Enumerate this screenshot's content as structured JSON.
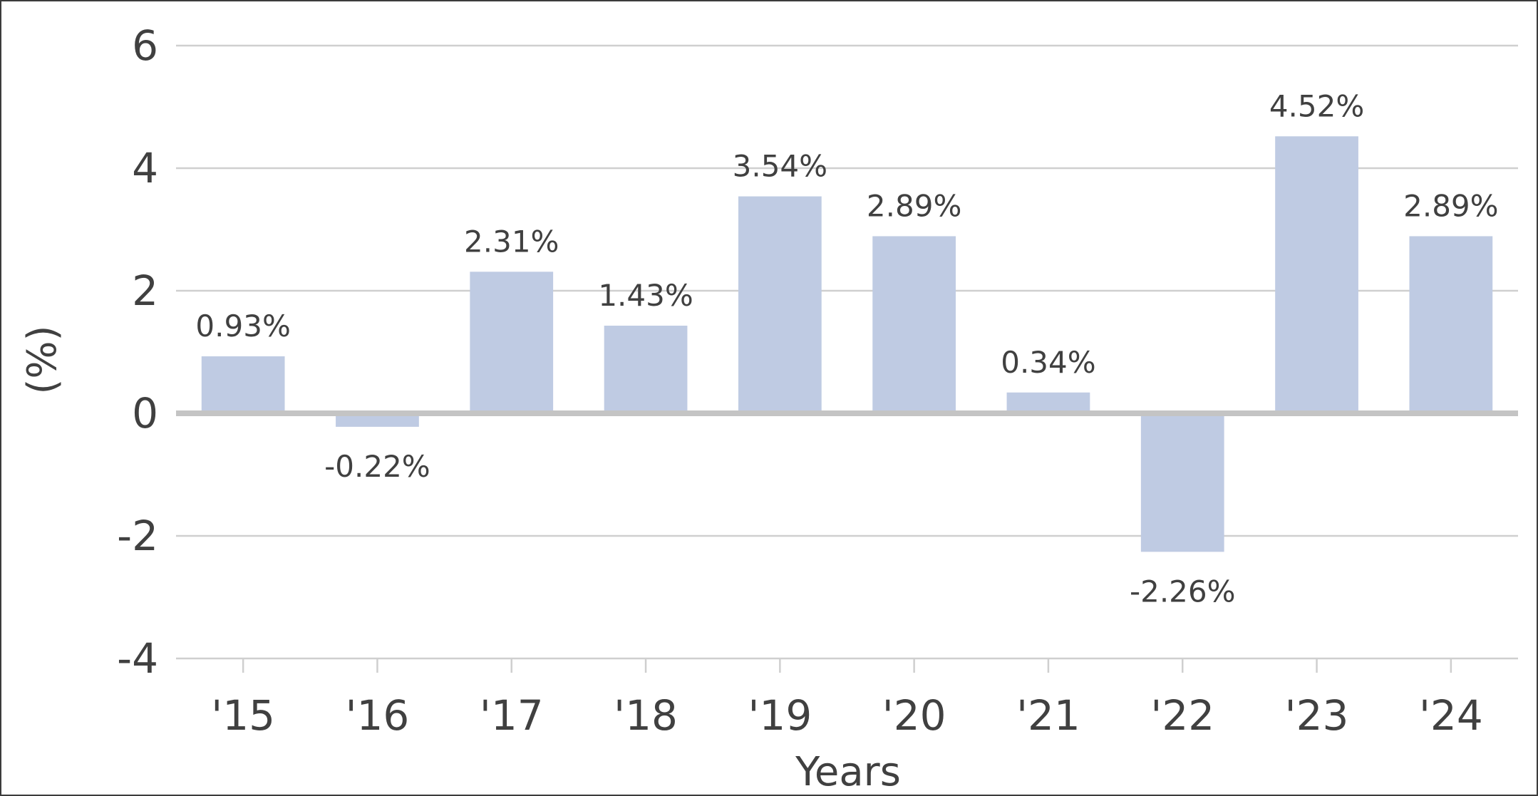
{
  "chart_data": {
    "type": "bar",
    "categories": [
      "'15",
      "'16",
      "'17",
      "'18",
      "'19",
      "'20",
      "'21",
      "'22",
      "'23",
      "'24"
    ],
    "values": [
      0.93,
      -0.22,
      2.31,
      1.43,
      3.54,
      2.89,
      0.34,
      -2.26,
      4.52,
      2.89
    ],
    "data_labels": [
      "0.93%",
      "-0.22%",
      "2.31%",
      "1.43%",
      "3.54%",
      "2.89%",
      "0.34%",
      "-2.26%",
      "4.52%",
      "2.89%"
    ],
    "xlabel": "Years",
    "ylabel": "(%)",
    "ylim": [
      -4,
      6
    ],
    "yticks": [
      6,
      4,
      2,
      0,
      -2,
      -4
    ],
    "ytick_labels": [
      "6",
      "4",
      "2",
      "0",
      "-2",
      "-4"
    ],
    "grid": true,
    "legend": "none",
    "colors": {
      "bar": "#bfcbe3",
      "grid": "#cfcfcf",
      "zero_line": "#c4c4c4",
      "text": "#404040",
      "border": "#3c3c3c"
    }
  }
}
